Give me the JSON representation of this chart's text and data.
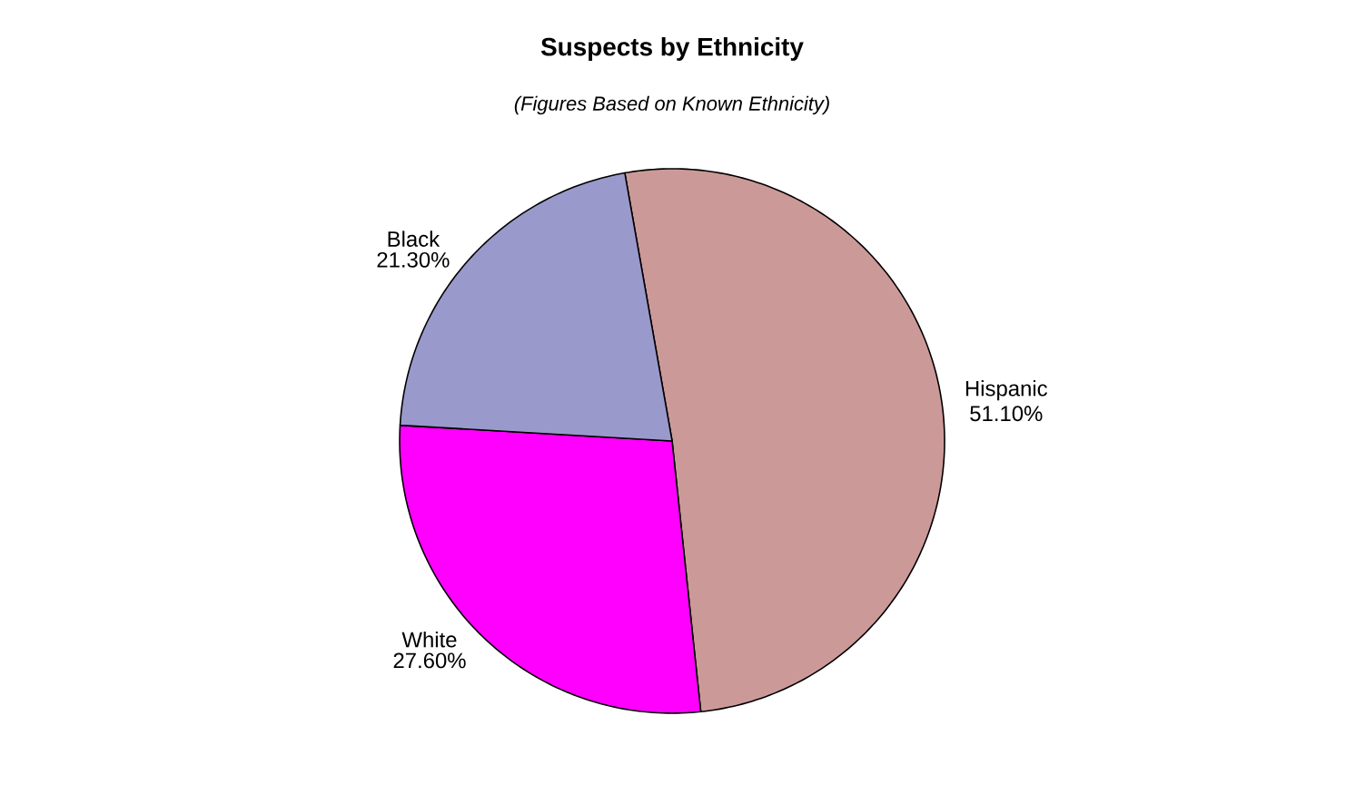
{
  "chart_data": {
    "type": "pie",
    "title": "Suspects by Ethnicity",
    "subtitle": "(Figures Based on Known Ethnicity)",
    "categories": [
      "Hispanic",
      "White",
      "Black"
    ],
    "values": [
      51.1,
      27.6,
      21.3
    ],
    "colors": [
      "#cc9999",
      "#ff00ff",
      "#9999cc"
    ],
    "value_labels": [
      "51.10%",
      "27.60%",
      "21.30%"
    ],
    "legend": false
  }
}
